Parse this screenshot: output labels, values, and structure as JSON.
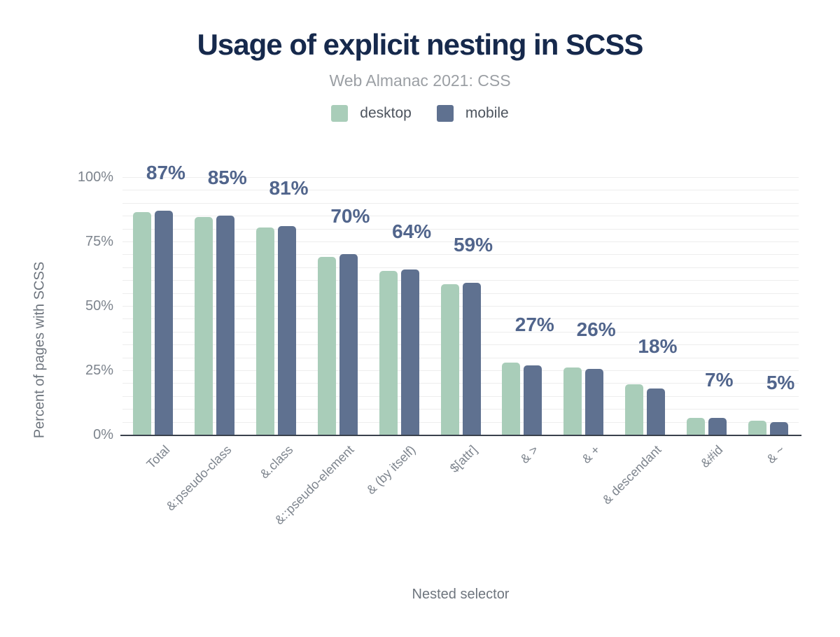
{
  "chart_data": {
    "type": "bar",
    "title": "Usage of explicit nesting in SCSS",
    "subtitle": "Web Almanac 2021: CSS",
    "xlabel": "Nested selector",
    "ylabel": "Percent of pages with SCSS",
    "categories": [
      "Total",
      "&:pseudo-class",
      "&.class",
      "&::pseudo-element",
      "& (by itself)",
      "$[attr]",
      "& >",
      "& +",
      "& descendant",
      "&#id",
      "& ~"
    ],
    "series": [
      {
        "name": "desktop",
        "color": "#a9cdb9",
        "values": [
          86.5,
          84.5,
          80.5,
          69,
          63.5,
          58.5,
          28,
          26,
          19.5,
          6.5,
          5.5
        ]
      },
      {
        "name": "mobile",
        "color": "#5f7190",
        "values": [
          87,
          85,
          81,
          70,
          64,
          59,
          27,
          25.5,
          18,
          6.5,
          5
        ]
      }
    ],
    "bar_labels": [
      "87%",
      "85%",
      "81%",
      "70%",
      "64%",
      "59%",
      "27%",
      "26%",
      "18%",
      "7%",
      "5%"
    ],
    "yticks": [
      "0%",
      "25%",
      "50%",
      "75%",
      "100%"
    ],
    "ylim": [
      0,
      100
    ],
    "grid_step_pct": 5,
    "grid": true,
    "legend_position": "top",
    "colors": {
      "title": "#16294c",
      "subtitle": "#9b9fa4",
      "legendtext": "#4d545e",
      "label": "#51658c",
      "tick": "#7d848d",
      "axistitle": "#6e757e",
      "grid": "#ededed",
      "axis": "#3a414c"
    }
  }
}
